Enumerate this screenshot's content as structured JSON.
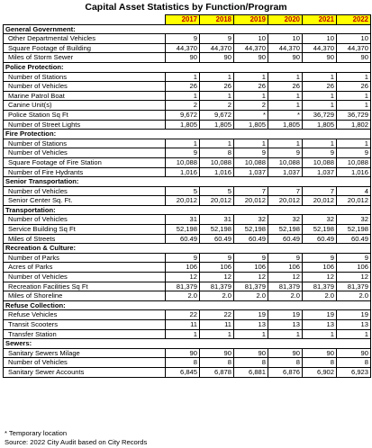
{
  "title": "Capital Asset Statistics by Function/Program",
  "years": [
    "2017",
    "2018",
    "2019",
    "2020",
    "2021",
    "2022"
  ],
  "sections": [
    {
      "heading": "General Government:",
      "rows": [
        {
          "label": "Other Departmental Vehicles",
          "values": [
            "9",
            "9",
            "10",
            "10",
            "10",
            "10"
          ]
        },
        {
          "label": "Square Footage of Building",
          "values": [
            "44,370",
            "44,370",
            "44,370",
            "44,370",
            "44,370",
            "44,370"
          ]
        },
        {
          "label": "Miles of Storm Sewer",
          "values": [
            "90",
            "90",
            "90",
            "90",
            "90",
            "90"
          ]
        }
      ]
    },
    {
      "heading": "Police Protection:",
      "rows": [
        {
          "label": "Number of Stations",
          "values": [
            "1",
            "1",
            "1",
            "1",
            "1",
            "1"
          ]
        },
        {
          "label": "Number of Vehicles",
          "values": [
            "26",
            "26",
            "26",
            "26",
            "26",
            "26"
          ]
        },
        {
          "label": "Marine Patrol Boat",
          "values": [
            "1",
            "1",
            "1",
            "1",
            "1",
            "1"
          ]
        },
        {
          "label": "Canine Unit(s)",
          "values": [
            "2",
            "2",
            "2",
            "1",
            "1",
            "1"
          ]
        },
        {
          "label": "Police Station Sq Ft",
          "values": [
            "9,672",
            "9,672",
            "*",
            "*",
            "36,729",
            "36,729"
          ]
        },
        {
          "label": "Number of Street Lights",
          "values": [
            "1,805",
            "1,805",
            "1,805",
            "1,805",
            "1,805",
            "1,802"
          ]
        }
      ]
    },
    {
      "heading": "Fire Protection:",
      "rows": [
        {
          "label": "Number of Stations",
          "values": [
            "1",
            "1",
            "1",
            "1",
            "1",
            "1"
          ]
        },
        {
          "label": "Number of Vehicles",
          "values": [
            "9",
            "8",
            "9",
            "9",
            "9",
            "9"
          ]
        },
        {
          "label": "Square Footage of Fire Station",
          "values": [
            "10,088",
            "10,088",
            "10,088",
            "10,088",
            "10,088",
            "10,088"
          ]
        },
        {
          "label": "Number of Fire Hydrants",
          "values": [
            "1,016",
            "1,016",
            "1,037",
            "1,037",
            "1,037",
            "1,016"
          ]
        }
      ]
    },
    {
      "heading": "Senior Transportation:",
      "rows": [
        {
          "label": "Number of Vehicles",
          "values": [
            "5",
            "5",
            "7",
            "7",
            "7",
            "4"
          ]
        },
        {
          "label": "Senior Center Sq. Ft.",
          "values": [
            "20,012",
            "20,012",
            "20,012",
            "20,012",
            "20,012",
            "20,012"
          ]
        }
      ]
    },
    {
      "heading": "Transportation:",
      "rows": [
        {
          "label": "Number of Vehicles",
          "values": [
            "31",
            "31",
            "32",
            "32",
            "32",
            "32"
          ]
        },
        {
          "label": "Service Building Sq Ft",
          "values": [
            "52,198",
            "52,198",
            "52,198",
            "52,198",
            "52,198",
            "52,198"
          ]
        },
        {
          "label": "Miles of Streets",
          "values": [
            "60.49",
            "60.49",
            "60.49",
            "60.49",
            "60.49",
            "60.49"
          ]
        }
      ]
    },
    {
      "heading": "Recreation & Culture:",
      "rows": [
        {
          "label": "Number of Parks",
          "values": [
            "9",
            "9",
            "9",
            "9",
            "9",
            "9"
          ]
        },
        {
          "label": "Acres of Parks",
          "values": [
            "106",
            "106",
            "106",
            "106",
            "106",
            "106"
          ]
        },
        {
          "label": "Number of Vehicles",
          "values": [
            "12",
            "12",
            "12",
            "12",
            "12",
            "12"
          ]
        },
        {
          "label": "Recreation Facilities Sq Ft",
          "values": [
            "81,379",
            "81,379",
            "81,379",
            "81,379",
            "81,379",
            "81,379"
          ]
        },
        {
          "label": "Miles of Shoreline",
          "values": [
            "2.0",
            "2.0",
            "2.0",
            "2.0",
            "2.0",
            "2.0"
          ]
        }
      ]
    },
    {
      "heading": "Refuse Collection:",
      "rows": [
        {
          "label": "Refuse Vehicles",
          "values": [
            "22",
            "22",
            "19",
            "19",
            "19",
            "19"
          ]
        },
        {
          "label": "Transit Scooters",
          "values": [
            "11",
            "11",
            "13",
            "13",
            "13",
            "13"
          ]
        },
        {
          "label": "Transfer Station",
          "values": [
            "1",
            "1",
            "1",
            "1",
            "1",
            "1"
          ]
        }
      ]
    },
    {
      "heading": "Sewers:",
      "rows": [
        {
          "label": "Sanitary Sewers Milage",
          "values": [
            "90",
            "90",
            "90",
            "90",
            "90",
            "90"
          ]
        },
        {
          "label": "Number of Vehicles",
          "values": [
            "8",
            "8",
            "8",
            "8",
            "8",
            "8"
          ]
        },
        {
          "label": "Sanitary Sewer Accounts",
          "values": [
            "6,845",
            "6,878",
            "6,881",
            "6,876",
            "6,902",
            "6,923"
          ]
        }
      ]
    }
  ],
  "footnotes": [
    "* Temporary location",
    "Source: 2022 City Audit based on City Records"
  ]
}
